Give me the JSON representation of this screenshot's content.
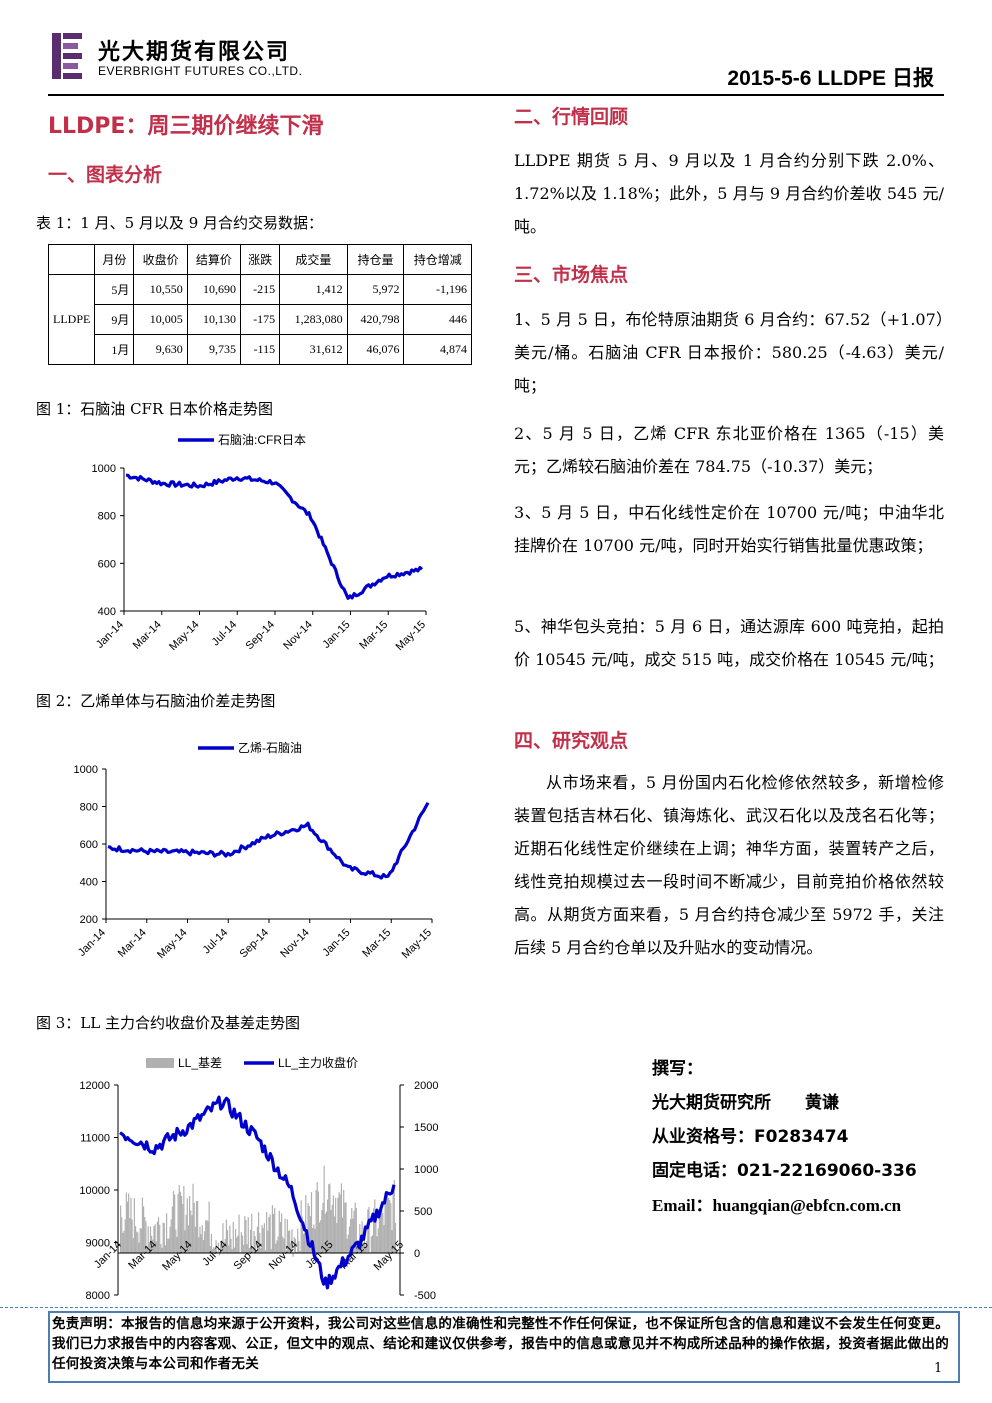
{
  "header": {
    "company_cn": "光大期货有限公司",
    "company_en": "EVERBRIGHT FUTURES CO.,LTD.",
    "date_title": "2015-5-6 LLDPE 日报"
  },
  "title": "LLDPE：周三期价继续下滑",
  "sections": {
    "chart_analysis": "一、图表分析",
    "market_review": "二、行情回顾",
    "market_focus": "三、市场焦点",
    "research_view": "四、研究观点"
  },
  "table1": {
    "caption": "表 1：1 月、5 月以及 9 月合约交易数据：",
    "headers": [
      "月份",
      "收盘价",
      "结算价",
      "涨跌",
      "成交量",
      "持仓量",
      "持仓增减"
    ],
    "product": "LLDPE",
    "rows": [
      [
        "5月",
        "10,550",
        "10,690",
        "-215",
        "1,412",
        "5,972",
        "-1,196"
      ],
      [
        "9月",
        "10,005",
        "10,130",
        "-175",
        "1,283,080",
        "420,798",
        "446"
      ],
      [
        "1月",
        "9,630",
        "9,735",
        "-115",
        "31,612",
        "46,076",
        "4,874"
      ]
    ]
  },
  "figure1_caption": "图 1：石脑油 CFR 日本价格走势图",
  "figure2_caption": "图 2：乙烯单体与石脑油价差走势图",
  "figure3_caption": "图 3：LL 主力合约收盘价及基差走势图",
  "colors": {
    "accent": "#c0304a",
    "line": "#0000cc",
    "basis_fill": "#b0b0b0",
    "border": "#4a7fb0"
  },
  "chart_data": [
    {
      "type": "line",
      "categories": [
        "Jan-14",
        "Mar-14",
        "May-14",
        "Jul-14",
        "Sep-14",
        "Nov-14",
        "Jan-15",
        "Mar-15",
        "May-15"
      ],
      "series": [
        {
          "name": "石脑油:CFR日本",
          "values": [
            970,
            935,
            925,
            960,
            940,
            795,
            450,
            545,
            575
          ]
        }
      ],
      "ylim": [
        400,
        1000
      ],
      "yticks": [
        "1000",
        "800",
        "600",
        "400"
      ]
    },
    {
      "type": "line",
      "categories": [
        "Jan-14",
        "Mar-14",
        "May-14",
        "Jul-14",
        "Sep-14",
        "Nov-14",
        "Jan-15",
        "Mar-15",
        "May-15"
      ],
      "series": [
        {
          "name": "乙烯-石脑油",
          "values": [
            580,
            560,
            555,
            545,
            640,
            700,
            470,
            420,
            820
          ]
        }
      ],
      "ylim": [
        200,
        1000
      ],
      "yticks": [
        "1000",
        "800",
        "600",
        "400",
        "200"
      ]
    },
    {
      "type": "line",
      "categories": [
        "Jan-14",
        "Mar-14",
        "May-14",
        "Jul-14",
        "Sep-14",
        "Nov-14",
        "Jan-15",
        "Mar-15",
        "May-15"
      ],
      "series": [
        {
          "name": "LL_基差",
          "values": [
            500,
            300,
            600,
            150,
            350,
            200,
            800,
            200,
            600
          ]
        },
        {
          "name": "LL_主力收盘价",
          "values": [
            11100,
            10800,
            11200,
            11700,
            11000,
            10000,
            8200,
            9000,
            10100
          ]
        }
      ],
      "ylim": [
        8000,
        12000
      ],
      "y2lim": [
        -500,
        2000
      ],
      "yticks": [
        "12000",
        "11000",
        "10000",
        "9000",
        "8000"
      ],
      "y2ticks": [
        "2000",
        "1500",
        "1000",
        "500",
        "0",
        "-500"
      ]
    }
  ],
  "review": {
    "text": "LLDPE 期货 5 月、9 月以及 1 月合约分别下跌 2.0%、1.72%以及 1.18%；此外，5 月与 9 月合约价差收 545 元/吨。"
  },
  "focus": [
    "1、5 月 5 日，布伦特原油期货 6 月合约：67.52（+1.07）美元/桶。石脑油 CFR 日本报价：580.25（-4.63）美元/吨；",
    "2、5 月 5 日，乙烯 CFR 东北亚价格在 1365（-15）美元；乙烯较石脑油价差在 784.75（-10.37）美元；",
    "3、5 月 5 日，中石化线性定价在 10700 元/吨；中油华北挂牌价在 10700 元/吨，同时开始实行销售批量优惠政策；",
    "5、神华包头竞拍：5 月 6 日，通达源库 600 吨竞拍，起拍价 10545 元/吨，成交 515 吨，成交价格在 10545 元/吨；"
  ],
  "view": {
    "text": "从市场来看，5 月份国内石化检修依然较多，新增检修装置包括吉林石化、镇海炼化、武汉石化以及茂名石化等；近期石化线性定价继续在上调；神华方面，装置转产之后，线性竞拍规模过去一段时间不断减少，目前竞拍价格依然较高。从期货方面来看，5 月合约持仓减少至 5972 手，关注后续 5 月合约仓单以及升贴水的变动情况。"
  },
  "author": {
    "label": "撰写：",
    "org": "光大期货研究所　　黄谦",
    "license": "从业资格号：F0283474",
    "phone": "固定电话：021-22169060-336",
    "email": "Email：huangqian@ebfcn.com.cn"
  },
  "disclaimer": "免责声明：本报告的信息均来源于公开资料，我公司对这些信息的准确性和完整性不作任何保证，也不保证所包含的信息和建议不会发生任何变更。我们已力求报告中的内容客观、公正，但文中的观点、结论和建议仅供参考，报告中的信息或意见并不构成所述品种的操作依据，投资者据此做出的任何投资决策与本公司和作者无关",
  "page_number": "1"
}
